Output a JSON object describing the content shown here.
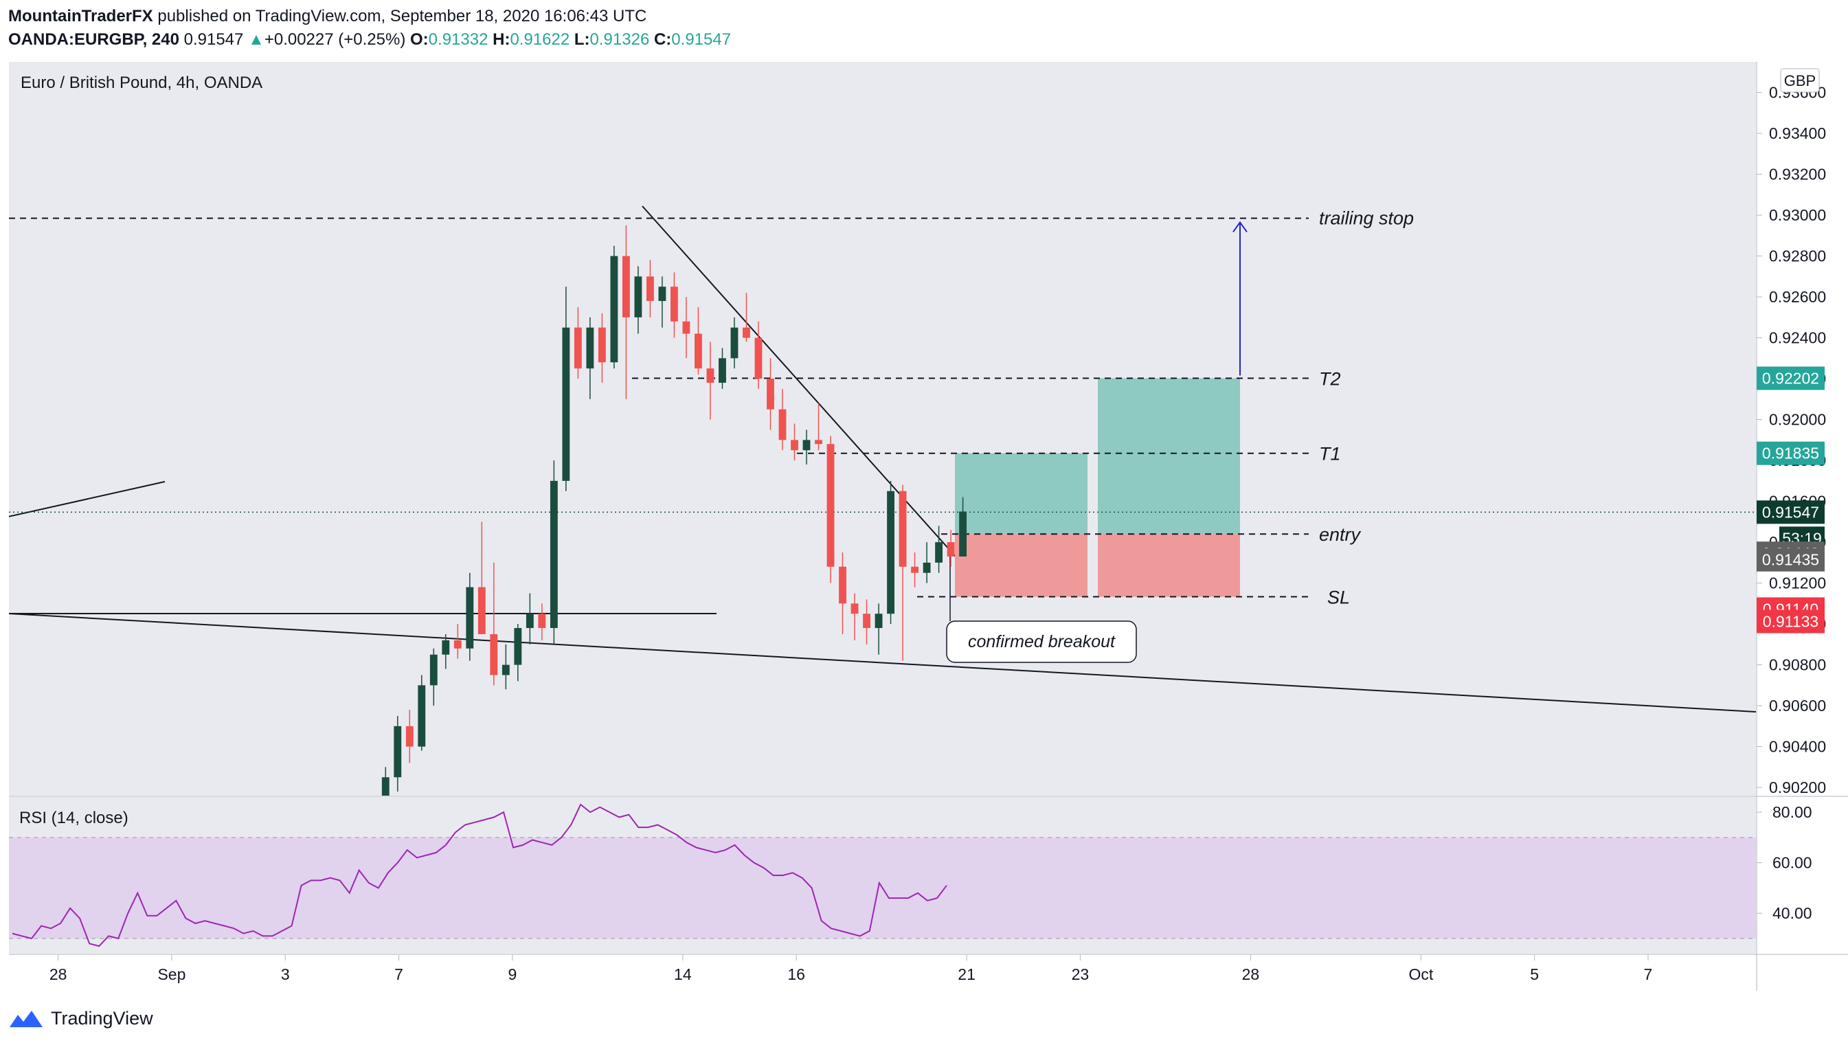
{
  "header": {
    "author": "MountainTraderFX",
    "published": "published on TradingView.com, September 18, 2020 16:06:43 UTC"
  },
  "ohlc": {
    "symbol": "OANDA:EURGBP, 240",
    "last": "0.91547",
    "change": "+0.00227 (+0.25%)",
    "o_label": "O:",
    "o": "0.91332",
    "h_label": "H:",
    "h": "0.91622",
    "l_label": "L:",
    "l": "0.91326",
    "c_label": "C:",
    "c": "0.91547"
  },
  "footer": {
    "brand": "TradingView"
  },
  "chart_data": [
    {
      "type": "candlestick",
      "title": "Euro / British Pound, 4h, OANDA",
      "currency": "GBP",
      "y_ticks": [
        "0.90200",
        "0.90400",
        "0.90600",
        "0.90800",
        "0.91000",
        "0.91200",
        "0.91400",
        "0.91600",
        "0.91800",
        "0.92000",
        "0.92200",
        "0.92400",
        "0.92600",
        "0.92800",
        "0.93000",
        "0.93200",
        "0.93400",
        "0.93600"
      ],
      "ylim": [
        0.9016,
        0.9375
      ],
      "x_ticks": [
        {
          "label": "28",
          "t": 0
        },
        {
          "label": "Sep",
          "t": 6
        },
        {
          "label": "3",
          "t": 12
        },
        {
          "label": "7",
          "t": 18
        },
        {
          "label": "9",
          "t": 24
        },
        {
          "label": "14",
          "t": 33
        },
        {
          "label": "16",
          "t": 39
        },
        {
          "label": "21",
          "t": 48
        },
        {
          "label": "23",
          "t": 54
        },
        {
          "label": "28",
          "t": 63
        },
        {
          "label": "Oct",
          "t": 72
        },
        {
          "label": "5",
          "t": 78
        },
        {
          "label": "7",
          "t": 84
        }
      ],
      "xlim": [
        -2.6,
        89.7
      ],
      "candles": [
        {
          "o": 0.899,
          "h": 0.903,
          "l": 0.8985,
          "c": 0.9025
        },
        {
          "o": 0.9025,
          "h": 0.9055,
          "l": 0.9018,
          "c": 0.905
        },
        {
          "o": 0.905,
          "h": 0.9058,
          "l": 0.9032,
          "c": 0.904
        },
        {
          "o": 0.904,
          "h": 0.9075,
          "l": 0.9038,
          "c": 0.907
        },
        {
          "o": 0.907,
          "h": 0.9088,
          "l": 0.906,
          "c": 0.9085
        },
        {
          "o": 0.9085,
          "h": 0.9095,
          "l": 0.9078,
          "c": 0.9092
        },
        {
          "o": 0.9092,
          "h": 0.91,
          "l": 0.9083,
          "c": 0.9088
        },
        {
          "o": 0.9088,
          "h": 0.9125,
          "l": 0.9082,
          "c": 0.9118
        },
        {
          "o": 0.9118,
          "h": 0.915,
          "l": 0.9098,
          "c": 0.9095
        },
        {
          "o": 0.9095,
          "h": 0.913,
          "l": 0.907,
          "c": 0.9075
        },
        {
          "o": 0.9075,
          "h": 0.909,
          "l": 0.9068,
          "c": 0.908
        },
        {
          "o": 0.908,
          "h": 0.91,
          "l": 0.9072,
          "c": 0.9098
        },
        {
          "o": 0.9098,
          "h": 0.9115,
          "l": 0.909,
          "c": 0.9105
        },
        {
          "o": 0.9105,
          "h": 0.911,
          "l": 0.9092,
          "c": 0.9098
        },
        {
          "o": 0.9098,
          "h": 0.918,
          "l": 0.909,
          "c": 0.917
        },
        {
          "o": 0.917,
          "h": 0.9265,
          "l": 0.9165,
          "c": 0.9245
        },
        {
          "o": 0.9245,
          "h": 0.9255,
          "l": 0.922,
          "c": 0.9225
        },
        {
          "o": 0.9225,
          "h": 0.925,
          "l": 0.921,
          "c": 0.9245
        },
        {
          "o": 0.9245,
          "h": 0.9252,
          "l": 0.9218,
          "c": 0.9228
        },
        {
          "o": 0.9228,
          "h": 0.9285,
          "l": 0.9225,
          "c": 0.928
        },
        {
          "o": 0.928,
          "h": 0.9295,
          "l": 0.921,
          "c": 0.925
        },
        {
          "o": 0.925,
          "h": 0.9275,
          "l": 0.9242,
          "c": 0.927
        },
        {
          "o": 0.927,
          "h": 0.9278,
          "l": 0.925,
          "c": 0.9258
        },
        {
          "o": 0.9258,
          "h": 0.927,
          "l": 0.9245,
          "c": 0.9265
        },
        {
          "o": 0.9265,
          "h": 0.9272,
          "l": 0.924,
          "c": 0.9248
        },
        {
          "o": 0.9248,
          "h": 0.926,
          "l": 0.923,
          "c": 0.9242
        },
        {
          "o": 0.9242,
          "h": 0.9255,
          "l": 0.9222,
          "c": 0.9225
        },
        {
          "o": 0.9225,
          "h": 0.9238,
          "l": 0.92,
          "c": 0.9218
        },
        {
          "o": 0.9218,
          "h": 0.9235,
          "l": 0.9215,
          "c": 0.923
        },
        {
          "o": 0.923,
          "h": 0.925,
          "l": 0.9225,
          "c": 0.9245
        },
        {
          "o": 0.9245,
          "h": 0.9262,
          "l": 0.9238,
          "c": 0.924
        },
        {
          "o": 0.924,
          "h": 0.9248,
          "l": 0.9215,
          "c": 0.922
        },
        {
          "o": 0.922,
          "h": 0.923,
          "l": 0.9195,
          "c": 0.9205
        },
        {
          "o": 0.9205,
          "h": 0.9215,
          "l": 0.9185,
          "c": 0.919
        },
        {
          "o": 0.919,
          "h": 0.9198,
          "l": 0.918,
          "c": 0.9185
        },
        {
          "o": 0.9185,
          "h": 0.9195,
          "l": 0.9178,
          "c": 0.919
        },
        {
          "o": 0.919,
          "h": 0.9208,
          "l": 0.9185,
          "c": 0.9188
        },
        {
          "o": 0.9188,
          "h": 0.9192,
          "l": 0.912,
          "c": 0.9128
        },
        {
          "o": 0.9128,
          "h": 0.9135,
          "l": 0.9095,
          "c": 0.911
        },
        {
          "o": 0.911,
          "h": 0.9115,
          "l": 0.9092,
          "c": 0.9105
        },
        {
          "o": 0.9105,
          "h": 0.9112,
          "l": 0.909,
          "c": 0.9098
        },
        {
          "o": 0.9098,
          "h": 0.911,
          "l": 0.9085,
          "c": 0.9105
        },
        {
          "o": 0.9105,
          "h": 0.917,
          "l": 0.91,
          "c": 0.9165
        },
        {
          "o": 0.9165,
          "h": 0.9168,
          "l": 0.9082,
          "c": 0.9128
        },
        {
          "o": 0.9128,
          "h": 0.9135,
          "l": 0.9118,
          "c": 0.9125
        },
        {
          "o": 0.9125,
          "h": 0.914,
          "l": 0.912,
          "c": 0.913
        },
        {
          "o": 0.913,
          "h": 0.9148,
          "l": 0.9125,
          "c": 0.914
        },
        {
          "o": 0.914,
          "h": 0.9146,
          "l": 0.9128,
          "c": 0.9133
        },
        {
          "o": 0.9133,
          "h": 0.9162,
          "l": 0.9133,
          "c": 0.9155
        }
      ],
      "annotations": {
        "trailing_stop": {
          "label": "trailing stop",
          "y": 0.92985
        },
        "t2": {
          "label": "T2",
          "y": 0.92202
        },
        "t1": {
          "label": "T1",
          "y": 0.91835
        },
        "entry": {
          "label": "entry",
          "y": 0.9144
        },
        "sl": {
          "label": "SL",
          "y": 0.91133
        },
        "callout": "confirmed breakout"
      },
      "price_labels": [
        {
          "value": "0.92202",
          "bg": "#26a69a"
        },
        {
          "value": "0.91835",
          "bg": "#26a69a"
        },
        {
          "value": "0.91547",
          "bg": "#0d3b2e"
        },
        {
          "value": "53:19",
          "bg": "#0d3b2e"
        },
        {
          "value": "0.91440",
          "bg": "#616161"
        },
        {
          "value": "0.91435",
          "bg": "#616161"
        },
        {
          "value": "0.91140",
          "bg": "#f23645"
        },
        {
          "value": "0.91133",
          "bg": "#f23645"
        }
      ],
      "colors": {
        "up": "#1b4d3e",
        "down": "#ef5350",
        "reward": "#8ecac2",
        "risk": "#ef9a9a",
        "rsi": "#9c27b0",
        "rsi_band": "#e1d2ee"
      }
    },
    {
      "type": "line",
      "title": "RSI (14, close)",
      "y_ticks": [
        "40.00",
        "60.00",
        "80.00"
      ],
      "ylim": [
        24,
        86
      ],
      "band": [
        30,
        70
      ],
      "values": [
        32,
        31,
        30,
        35,
        34,
        36,
        42,
        38,
        28,
        27,
        31,
        30,
        40,
        48,
        39,
        39,
        42,
        45,
        38,
        36,
        37,
        36,
        35,
        34,
        32,
        33,
        31,
        31,
        33,
        35,
        51,
        53,
        53,
        54,
        53,
        48,
        57,
        52,
        50,
        56,
        60,
        65,
        62,
        63,
        64,
        67,
        72,
        75,
        76,
        77,
        78,
        80,
        66,
        67,
        69,
        68,
        67,
        70,
        75,
        83,
        80,
        82,
        80,
        78,
        79,
        74,
        74,
        75,
        73,
        71,
        68,
        66,
        65,
        64,
        65,
        67,
        63,
        60,
        58,
        55,
        55,
        56,
        54,
        50,
        37,
        34,
        33,
        32,
        31,
        33,
        52,
        46,
        46,
        46,
        48,
        45,
        46,
        51
      ]
    }
  ]
}
